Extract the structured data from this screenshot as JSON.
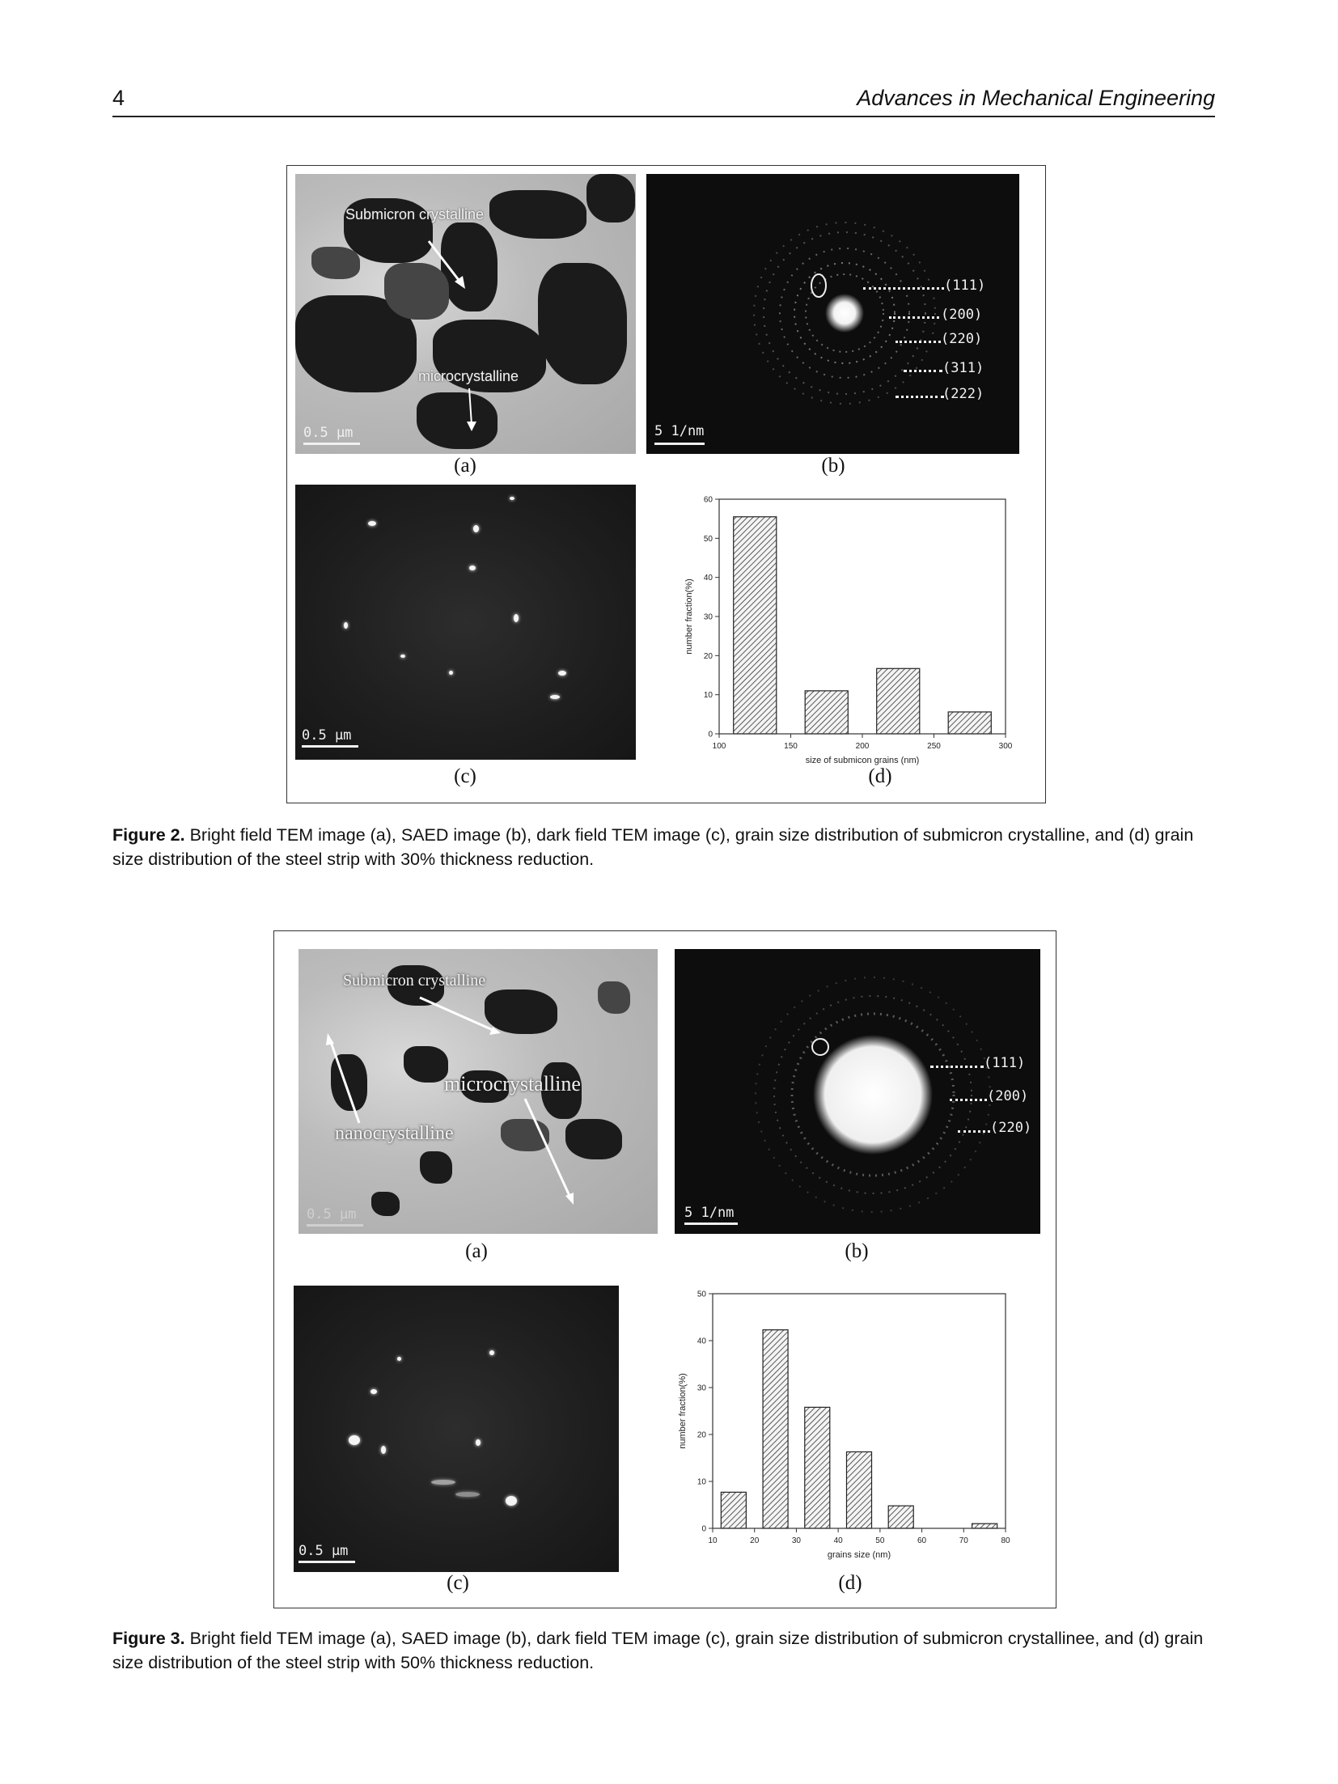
{
  "header": {
    "page_number": "4",
    "journal": "Advances in Mechanical Engineering"
  },
  "figure2": {
    "panel_a": {
      "letter": "(a)",
      "label_submicron": "Submicron crystalline",
      "label_micro": "microcrystalline",
      "scale": "0.5 μm"
    },
    "panel_b": {
      "letter": "(b)",
      "rings": [
        "(111)",
        "(200)",
        "(220)",
        "(311)",
        "(222)"
      ],
      "scale": "5 1/nm"
    },
    "panel_c": {
      "letter": "(c)",
      "scale": "0.5 μm"
    },
    "panel_d": {
      "letter": "(d)"
    },
    "caption_label": "Figure 2.",
    "caption_text": " Bright field TEM image (a), SAED image (b), dark field TEM image (c), grain size distribution of submicron crystalline, and (d) grain size distribution of the steel strip with 30% thickness reduction."
  },
  "figure3": {
    "panel_a": {
      "letter": "(a)",
      "label_submicron": "Submicron crystalline",
      "label_micro": "microcrystalline",
      "label_nano": "nanocrystalline",
      "scale": "0.5 μm"
    },
    "panel_b": {
      "letter": "(b)",
      "rings": [
        "(111)",
        "(200)",
        "(220)"
      ],
      "scale": "5 1/nm"
    },
    "panel_c": {
      "letter": "(c)",
      "scale": "0.5 μm"
    },
    "panel_d": {
      "letter": "(d)"
    },
    "caption_label": "Figure 3.",
    "caption_text": " Bright field TEM image (a), SAED image (b), dark field TEM image (c), grain size distribution of submicron crystallinee, and (d) grain size distribution of the steel strip with 50% thickness reduction."
  },
  "chart_data": [
    {
      "type": "bar",
      "x": [
        125,
        175,
        225,
        275
      ],
      "bar_width": 30,
      "values": [
        55.5,
        11,
        16.7,
        5.6
      ],
      "xlim": [
        100,
        300
      ],
      "ylim": [
        0,
        60
      ],
      "xticks": [
        100,
        150,
        200,
        250,
        300
      ],
      "yticks": [
        0,
        10,
        20,
        30,
        40,
        50,
        60
      ],
      "xlabel": "size of submicon grains (nm)",
      "ylabel": "number fraction(%)",
      "fill": "hatched"
    },
    {
      "type": "bar",
      "x": [
        15,
        25,
        35,
        45,
        55,
        75
      ],
      "bar_width": 6,
      "values": [
        7.7,
        42.3,
        25.8,
        16.3,
        4.8,
        1
      ],
      "xlim": [
        10,
        80
      ],
      "ylim": [
        0,
        50
      ],
      "xticks": [
        10,
        20,
        30,
        40,
        50,
        60,
        70,
        80
      ],
      "yticks": [
        0,
        10,
        20,
        30,
        40,
        50
      ],
      "xlabel": "grains size (nm)",
      "ylabel": "number fraction(%)",
      "fill": "hatched"
    }
  ]
}
